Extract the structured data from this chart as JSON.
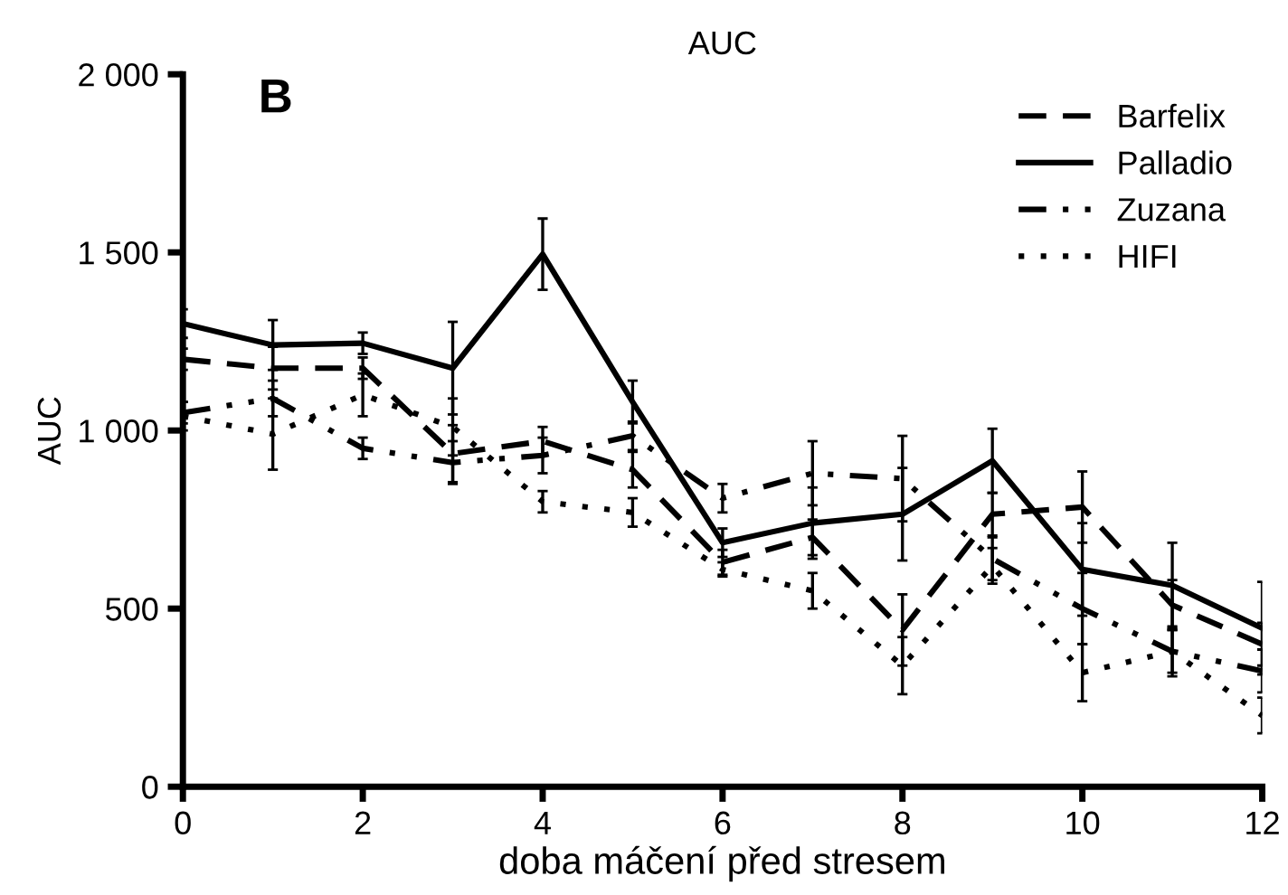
{
  "chart_data": {
    "type": "line",
    "title": "AUC",
    "xlabel": "doba máčení před stresem",
    "ylabel": "AUC",
    "annotations": [
      "B"
    ],
    "x": [
      0,
      1,
      2,
      3,
      4,
      5,
      6,
      7,
      8,
      9,
      10,
      11,
      12
    ],
    "xlim": [
      0,
      12
    ],
    "xticks": [
      0,
      2,
      4,
      6,
      8,
      10,
      12
    ],
    "ylim": [
      0,
      2000
    ],
    "yticks": [
      0,
      500,
      {
        "value": 1000,
        "label": "1 000"
      },
      {
        "value": 1500,
        "label": "1 500"
      },
      {
        "value": 2000,
        "label": "2 000"
      }
    ],
    "grid": false,
    "legend": "top right",
    "marker": "none",
    "series": [
      {
        "name": "Barfelix",
        "color": "#000000",
        "line_style": "dashed",
        "values": [
          1200,
          1175,
          1175,
          935,
          970,
          890,
          630,
          700,
          440,
          765,
          785,
          510,
          400
        ],
        "errors": [
          30,
          60,
          30,
          80,
          40,
          50,
          35,
          50,
          100,
          60,
          100,
          70,
          60
        ]
      },
      {
        "name": "Palladio",
        "color": "#000000",
        "line_style": "solid",
        "values": [
          1300,
          1240,
          1245,
          1175,
          1495,
          1080,
          685,
          740,
          765,
          915,
          610,
          565,
          445
        ],
        "errors": [
          40,
          70,
          30,
          130,
          100,
          60,
          40,
          100,
          130,
          90,
          130,
          120,
          130
        ]
      },
      {
        "name": "Zuzana",
        "color": "#000000",
        "line_style": "dashdot",
        "values": [
          1050,
          1090,
          950,
          910,
          930,
          985,
          810,
          880,
          865,
          640,
          500,
          380,
          325
        ],
        "errors": [
          30,
          50,
          30,
          60,
          50,
          40,
          40,
          90,
          120,
          60,
          100,
          70,
          60
        ]
      },
      {
        "name": "HIFI",
        "color": "#000000",
        "line_style": "dotted",
        "values": [
          1040,
          990,
          1100,
          1010,
          800,
          770,
          610,
          550,
          340,
          620,
          320,
          380,
          200
        ],
        "errors": [
          40,
          100,
          60,
          80,
          30,
          40,
          20,
          50,
          80,
          50,
          80,
          60,
          50
        ]
      }
    ]
  }
}
